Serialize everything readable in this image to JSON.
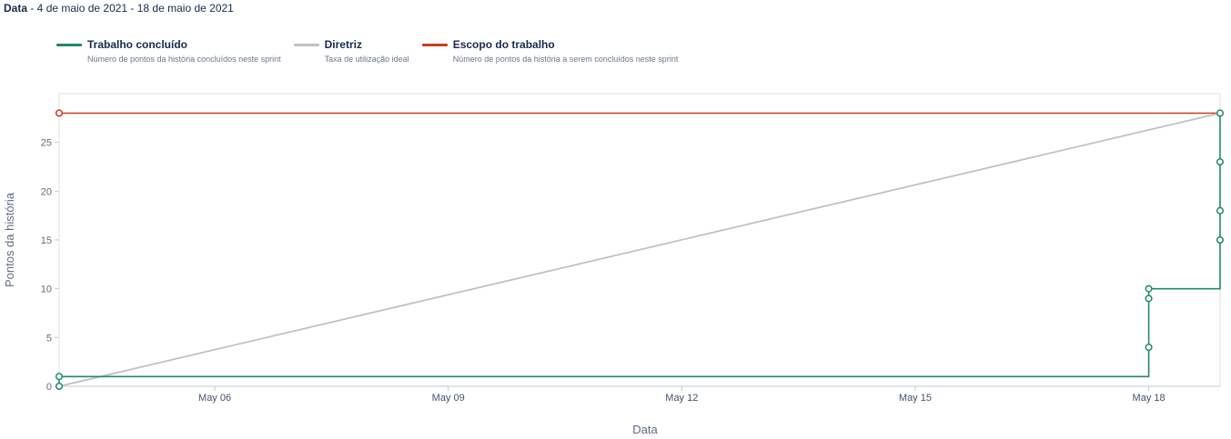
{
  "header": {
    "label": "Data",
    "range": " - 4 de maio de 2021 - 18 de maio de 2021"
  },
  "legend": [
    {
      "name": "Trabalho concluído",
      "desc": "Número de pontos da história concluídos neste sprint",
      "color": "#1f8a6e"
    },
    {
      "name": "Diretriz",
      "desc": "Taxa de utilização ideal",
      "color": "#c1c1c1"
    },
    {
      "name": "Escopo do trabalho",
      "desc": "Número de pontos da história a serem concluídos neste sprint",
      "color": "#cc3a1b"
    }
  ],
  "chart_data": {
    "type": "line",
    "xlabel": "Data",
    "ylabel": "Pontos da história",
    "x_unit": "date (days)",
    "xlim": [
      "2021-05-04",
      "2021-05-18T22:00"
    ],
    "ylim": [
      0,
      30
    ],
    "yticks": [
      0,
      5,
      10,
      15,
      20,
      25
    ],
    "xticks": [
      {
        "date": "2021-05-06",
        "label": "May 06"
      },
      {
        "date": "2021-05-09",
        "label": "May 09"
      },
      {
        "date": "2021-05-12",
        "label": "May 12"
      },
      {
        "date": "2021-05-15",
        "label": "May 15"
      },
      {
        "date": "2021-05-18",
        "label": "May 18"
      }
    ],
    "grid": false,
    "legend_position": "top-left",
    "series": [
      {
        "name": "Escopo do trabalho",
        "color": "#cc3a1b",
        "step": true,
        "points": [
          {
            "x": "2021-05-04",
            "y": 28
          },
          {
            "x": "2021-05-18T22:00",
            "y": 28
          }
        ],
        "markers": [
          {
            "x": "2021-05-04",
            "y": 28
          }
        ]
      },
      {
        "name": "Diretriz",
        "color": "#c1c1c1",
        "step": false,
        "points": [
          {
            "x": "2021-05-04",
            "y": 0
          },
          {
            "x": "2021-05-18T22:00",
            "y": 28
          }
        ],
        "markers": []
      },
      {
        "name": "Trabalho concluído",
        "color": "#1f8a6e",
        "step": true,
        "points": [
          {
            "x": "2021-05-04",
            "y": 0
          },
          {
            "x": "2021-05-04",
            "y": 1
          },
          {
            "x": "2021-05-18T00:00",
            "y": 1
          },
          {
            "x": "2021-05-18T00:00",
            "y": 4
          },
          {
            "x": "2021-05-18T00:00",
            "y": 9
          },
          {
            "x": "2021-05-18T00:00",
            "y": 10
          },
          {
            "x": "2021-05-18T22:00",
            "y": 10
          },
          {
            "x": "2021-05-18T22:00",
            "y": 15
          },
          {
            "x": "2021-05-18T22:00",
            "y": 18
          },
          {
            "x": "2021-05-18T22:00",
            "y": 23
          },
          {
            "x": "2021-05-18T22:00",
            "y": 28
          }
        ],
        "markers": [
          {
            "x": "2021-05-04",
            "y": 0
          },
          {
            "x": "2021-05-04",
            "y": 1
          },
          {
            "x": "2021-05-18T00:00",
            "y": 4
          },
          {
            "x": "2021-05-18T00:00",
            "y": 9
          },
          {
            "x": "2021-05-18T00:00",
            "y": 10
          },
          {
            "x": "2021-05-18T22:00",
            "y": 15
          },
          {
            "x": "2021-05-18T22:00",
            "y": 18
          },
          {
            "x": "2021-05-18T22:00",
            "y": 23
          },
          {
            "x": "2021-05-18T22:00",
            "y": 28
          }
        ]
      }
    ]
  }
}
